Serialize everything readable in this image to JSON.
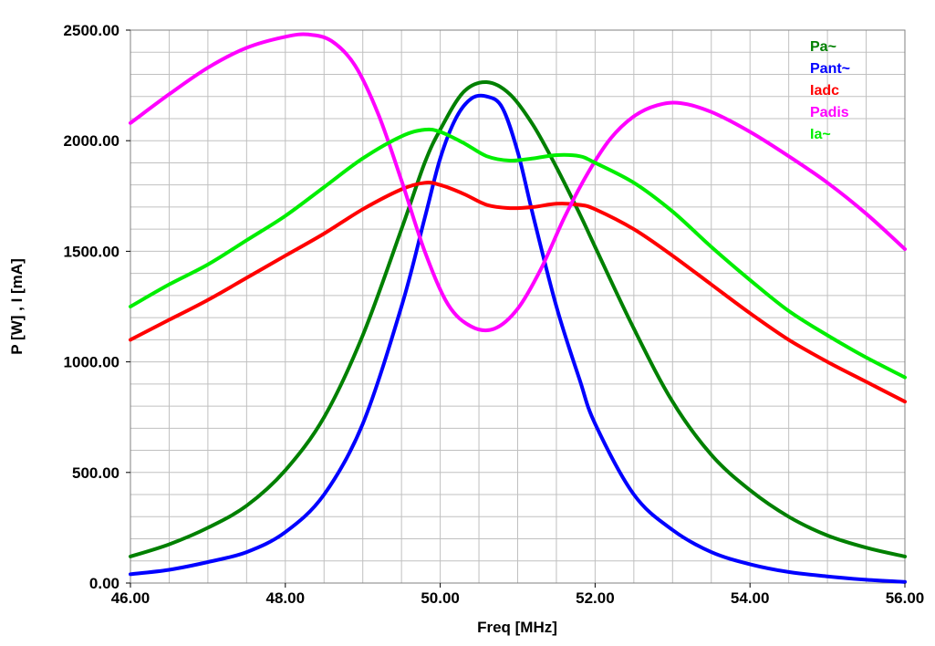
{
  "chart_data": {
    "type": "line",
    "xlabel": "Freq [MHz]",
    "ylabel": "P [W] , I [mA]",
    "xlim": [
      46,
      56
    ],
    "ylim": [
      0,
      2500
    ],
    "x_ticks": [
      "46.00",
      "48.00",
      "50.00",
      "52.00",
      "54.00",
      "56.00"
    ],
    "y_ticks": [
      "0.00",
      "500.00",
      "1000.00",
      "1500.00",
      "2000.00",
      "2500.00"
    ],
    "grid": true,
    "legend_position": "top-right",
    "series": [
      {
        "name": "Pa~",
        "color": "#008000",
        "x": [
          46.0,
          46.5,
          47.0,
          47.5,
          48.0,
          48.5,
          49.0,
          49.5,
          49.8,
          50.0,
          50.3,
          50.6,
          50.9,
          51.2,
          51.5,
          51.8,
          52.0,
          52.5,
          53.0,
          53.5,
          54.0,
          54.5,
          55.0,
          55.5,
          56.0
        ],
        "y": [
          120,
          175,
          250,
          350,
          510,
          750,
          1120,
          1600,
          1900,
          2050,
          2220,
          2265,
          2210,
          2070,
          1880,
          1670,
          1520,
          1150,
          820,
          580,
          420,
          300,
          215,
          160,
          120
        ]
      },
      {
        "name": "Pant~",
        "color": "#0000ff",
        "x": [
          46.0,
          46.5,
          47.0,
          47.5,
          48.0,
          48.5,
          49.0,
          49.5,
          49.8,
          50.0,
          50.2,
          50.4,
          50.6,
          50.8,
          51.0,
          51.2,
          51.5,
          51.8,
          52.0,
          52.5,
          53.0,
          53.5,
          54.0,
          54.5,
          55.0,
          55.5,
          56.0
        ],
        "y": [
          40,
          60,
          95,
          140,
          230,
          400,
          720,
          1250,
          1650,
          1920,
          2100,
          2190,
          2200,
          2150,
          1950,
          1660,
          1250,
          920,
          720,
          400,
          240,
          140,
          85,
          50,
          30,
          15,
          5
        ]
      },
      {
        "name": "Iadc",
        "color": "#ff0000",
        "x": [
          46.0,
          46.5,
          47.0,
          47.5,
          48.0,
          48.5,
          49.0,
          49.5,
          49.8,
          50.0,
          50.3,
          50.6,
          50.9,
          51.2,
          51.5,
          51.8,
          52.0,
          52.5,
          53.0,
          53.5,
          54.0,
          54.5,
          55.0,
          55.5,
          56.0
        ],
        "y": [
          1100,
          1190,
          1280,
          1380,
          1480,
          1580,
          1690,
          1780,
          1810,
          1800,
          1760,
          1710,
          1695,
          1700,
          1715,
          1710,
          1690,
          1600,
          1480,
          1350,
          1220,
          1100,
          1000,
          910,
          820
        ]
      },
      {
        "name": "Padis",
        "color": "#ff00ff",
        "x": [
          46.0,
          46.5,
          47.0,
          47.5,
          48.0,
          48.3,
          48.6,
          48.9,
          49.2,
          49.5,
          49.8,
          50.1,
          50.4,
          50.7,
          51.0,
          51.3,
          51.6,
          51.9,
          52.2,
          52.5,
          52.8,
          53.1,
          53.5,
          54.0,
          54.5,
          55.0,
          55.5,
          56.0
        ],
        "y": [
          2080,
          2210,
          2330,
          2420,
          2470,
          2480,
          2450,
          2340,
          2120,
          1820,
          1500,
          1260,
          1160,
          1150,
          1240,
          1420,
          1650,
          1850,
          2010,
          2110,
          2160,
          2170,
          2130,
          2040,
          1930,
          1810,
          1670,
          1510
        ]
      },
      {
        "name": "Ia~",
        "color": "#00ee00",
        "x": [
          46.0,
          46.5,
          47.0,
          47.5,
          48.0,
          48.5,
          49.0,
          49.5,
          49.8,
          50.0,
          50.3,
          50.6,
          50.9,
          51.2,
          51.5,
          51.8,
          52.0,
          52.5,
          53.0,
          53.5,
          54.0,
          54.5,
          55.0,
          55.5,
          56.0
        ],
        "y": [
          1250,
          1350,
          1440,
          1550,
          1660,
          1790,
          1920,
          2020,
          2050,
          2040,
          1990,
          1930,
          1910,
          1920,
          1935,
          1930,
          1900,
          1810,
          1680,
          1520,
          1370,
          1230,
          1120,
          1020,
          930
        ]
      }
    ]
  }
}
